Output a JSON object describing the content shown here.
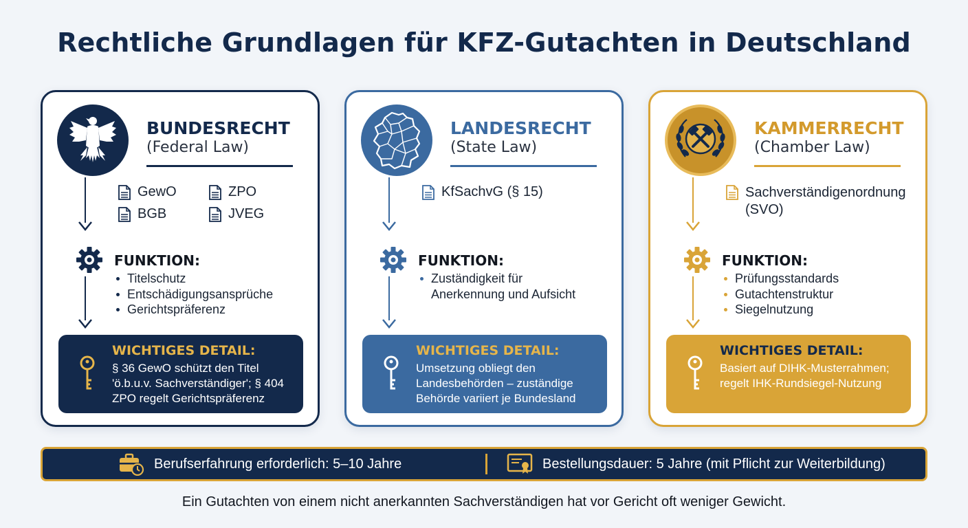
{
  "title": "Rechtliche Grundlagen für KFZ-Gutachten in Deutschland",
  "colors": {
    "navy": "#13294b",
    "blue": "#3b6aa0",
    "gold": "#d9a437"
  },
  "cards": [
    {
      "title": "BUNDESRECHT",
      "subtitle": "(Federal Law)",
      "emblem_icon": "federal-eagle-icon",
      "laws": [
        "GewO",
        "ZPO",
        "BGB",
        "JVEG"
      ],
      "function_title": "FUNKTION:",
      "functions": [
        "Titelschutz",
        "Entschädigungsansprüche",
        "Gerichtspräferenz"
      ],
      "detail_title": "WICHTIGES DETAIL:",
      "detail_lines": [
        "§ 36 GewO schützt den Titel",
        "'ö.b.u.v. Sachverständiger'; § 404",
        "ZPO regelt Gerichtspräferenz"
      ]
    },
    {
      "title": "LANDESRECHT",
      "subtitle": "(State Law)",
      "emblem_icon": "germany-states-map-icon",
      "laws": [
        "KfSachvG (§ 15)"
      ],
      "function_title": "FUNKTION:",
      "functions": [
        "Zuständigkeit für\nAnerkennung und Aufsicht"
      ],
      "detail_title": "WICHTIGES DETAIL:",
      "detail_lines": [
        "Umsetzung obliegt den",
        "Landesbehörden – zuständige",
        "Behörde variiert je Bundesland"
      ]
    },
    {
      "title": "KAMMERRECHT",
      "subtitle": "(Chamber Law)",
      "emblem_icon": "chamber-seal-hammers-icon",
      "laws": [
        "Sachverständigenordnung\n(SVO)"
      ],
      "function_title": "FUNKTION:",
      "functions": [
        "Prüfungsstandards",
        "Gutachtenstruktur",
        "Siegelnutzung"
      ],
      "detail_title": "WICHTIGES DETAIL:",
      "detail_lines": [
        "Basiert auf DIHK-Musterrahmen;",
        "regelt IHK-Rundsiegel-Nutzung"
      ]
    }
  ],
  "bottom_bar": {
    "experience": "Berufserfahrung erforderlich: 5–10 Jahre",
    "experience_icon": "briefcase-clock-icon",
    "duration": "Bestellungsdauer: 5 Jahre (mit Pflicht zur Weiterbildung)",
    "duration_icon": "certificate-icon"
  },
  "footer_note": "Ein Gutachten von einem nicht anerkannten Sachverständigen hat vor Gericht oft weniger Gewicht."
}
